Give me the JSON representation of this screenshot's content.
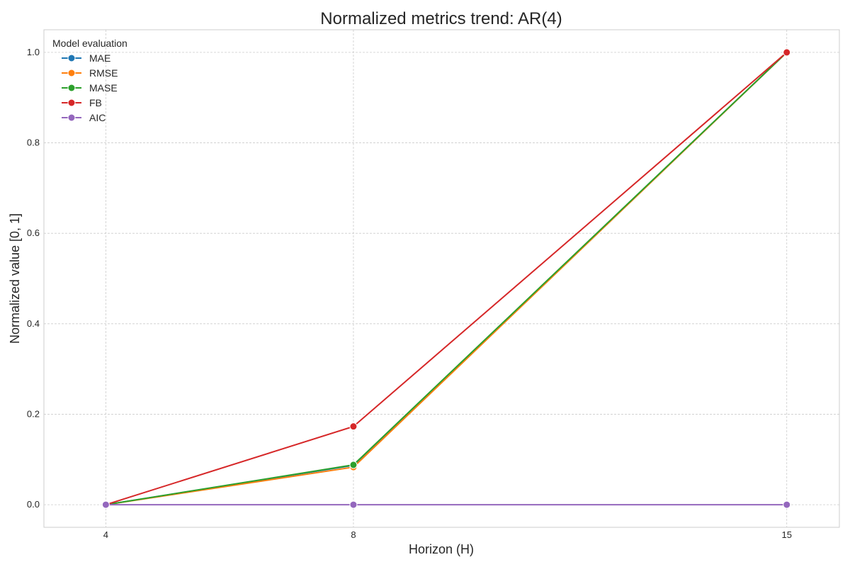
{
  "chart_data": {
    "type": "line",
    "title": "Normalized metrics trend: AR(4)",
    "xlabel": "Horizon (H)",
    "ylabel": "Normalized value [0, 1]",
    "x": [
      4,
      8,
      15
    ],
    "x_ticks": [
      "4",
      "8",
      "15"
    ],
    "y_ticks": [
      "0.0",
      "0.2",
      "0.4",
      "0.6",
      "0.8",
      "1.0"
    ],
    "ylim": [
      -0.05,
      1.05
    ],
    "grid": true,
    "legend": {
      "title": "Model evaluation",
      "placement": "top-left"
    },
    "series": [
      {
        "name": "MAE",
        "color": "#1f77b4",
        "values": [
          0.0,
          0.087,
          1.0
        ]
      },
      {
        "name": "RMSE",
        "color": "#ff7f0e",
        "values": [
          0.0,
          0.083,
          1.0
        ]
      },
      {
        "name": "MASE",
        "color": "#2ca02c",
        "values": [
          0.0,
          0.088,
          1.0
        ]
      },
      {
        "name": "FB",
        "color": "#d62728",
        "values": [
          0.0,
          0.173,
          1.0
        ]
      },
      {
        "name": "AIC",
        "color": "#9467bd",
        "values": [
          0.0,
          0.0,
          0.0
        ]
      }
    ]
  }
}
